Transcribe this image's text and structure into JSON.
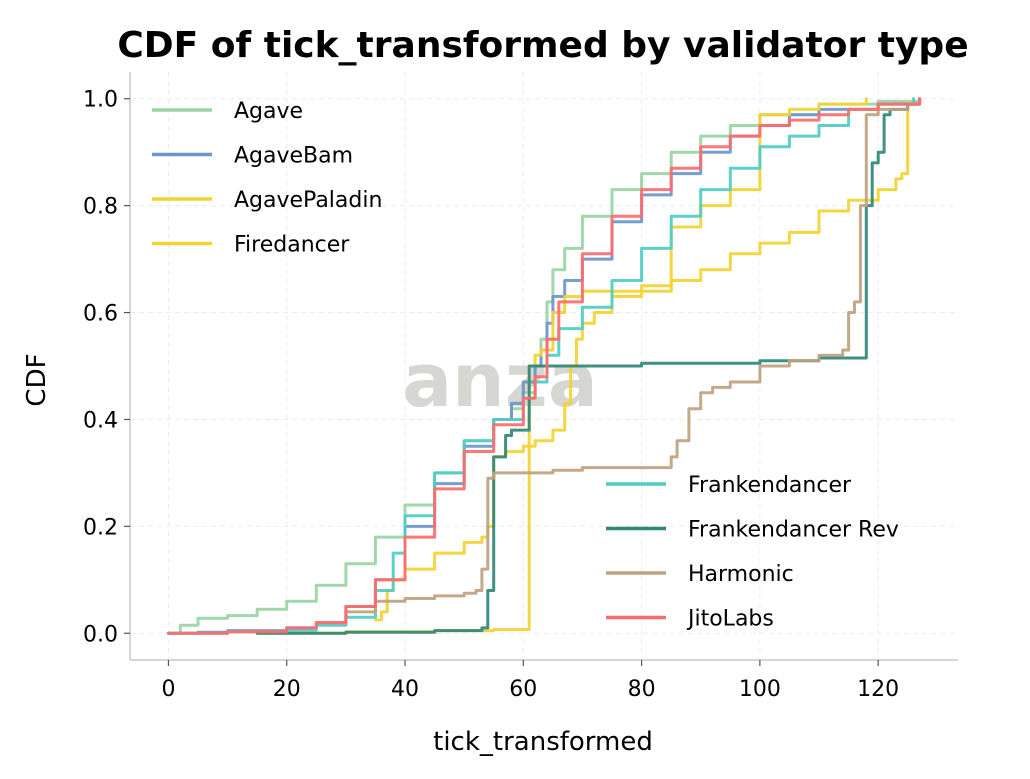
{
  "watermark": "anza",
  "chart_data": {
    "type": "line",
    "title": "CDF of tick_transformed by validator type",
    "xlabel": "tick_transformed",
    "ylabel": "CDF",
    "xlim": [
      -6.5,
      133.5
    ],
    "ylim": [
      -0.05,
      1.05
    ],
    "x_ticks": [
      0,
      20,
      40,
      60,
      80,
      100,
      120
    ],
    "y_ticks": [
      0.0,
      0.2,
      0.4,
      0.6,
      0.8,
      1.0
    ],
    "x_tick_labels": [
      "0",
      "20",
      "40",
      "60",
      "80",
      "100",
      "120"
    ],
    "y_tick_labels": [
      "0.0",
      "0.2",
      "0.4",
      "0.6",
      "0.8",
      "1.0"
    ],
    "grid": true,
    "legend_groups": [
      {
        "placement": "top-left",
        "entries": [
          "Agave",
          "AgaveBam",
          "AgavePaladin",
          "Firedancer"
        ]
      },
      {
        "placement": "bottom-right",
        "entries": [
          "Frankendancer",
          "Frankendancer Rev",
          "Harmonic",
          "JitoLabs"
        ]
      }
    ],
    "series": [
      {
        "name": "Agave",
        "color": "#98d4a4",
        "points": [
          [
            0,
            0
          ],
          [
            2,
            0.015
          ],
          [
            5,
            0.028
          ],
          [
            10,
            0.033
          ],
          [
            15,
            0.045
          ],
          [
            20,
            0.06
          ],
          [
            25,
            0.09
          ],
          [
            30,
            0.13
          ],
          [
            35,
            0.18
          ],
          [
            40,
            0.24
          ],
          [
            45,
            0.3
          ],
          [
            50,
            0.36
          ],
          [
            55,
            0.4
          ],
          [
            58,
            0.42
          ],
          [
            60,
            0.45
          ],
          [
            62,
            0.5
          ],
          [
            63,
            0.55
          ],
          [
            64,
            0.62
          ],
          [
            65,
            0.68
          ],
          [
            67,
            0.72
          ],
          [
            70,
            0.78
          ],
          [
            75,
            0.83
          ],
          [
            80,
            0.86
          ],
          [
            85,
            0.9
          ],
          [
            90,
            0.93
          ],
          [
            95,
            0.95
          ],
          [
            100,
            0.97
          ],
          [
            110,
            0.99
          ],
          [
            120,
            0.995
          ],
          [
            127,
            1.0
          ]
        ]
      },
      {
        "name": "AgaveBam",
        "color": "#6b96cc",
        "points": [
          [
            0,
            0
          ],
          [
            5,
            0.002
          ],
          [
            10,
            0.005
          ],
          [
            20,
            0.01
          ],
          [
            25,
            0.02
          ],
          [
            30,
            0.05
          ],
          [
            35,
            0.1
          ],
          [
            40,
            0.2
          ],
          [
            45,
            0.28
          ],
          [
            50,
            0.35
          ],
          [
            55,
            0.4
          ],
          [
            58,
            0.43
          ],
          [
            60,
            0.47
          ],
          [
            62,
            0.5
          ],
          [
            63,
            0.53
          ],
          [
            64,
            0.58
          ],
          [
            65,
            0.63
          ],
          [
            67,
            0.66
          ],
          [
            70,
            0.7
          ],
          [
            75,
            0.77
          ],
          [
            80,
            0.82
          ],
          [
            85,
            0.86
          ],
          [
            90,
            0.9
          ],
          [
            95,
            0.93
          ],
          [
            100,
            0.95
          ],
          [
            105,
            0.97
          ],
          [
            110,
            0.98
          ],
          [
            120,
            0.99
          ],
          [
            127,
            1.0
          ]
        ]
      },
      {
        "name": "AgavePaladin",
        "color": "#f3d232",
        "points": [
          [
            35,
            0.025
          ],
          [
            36,
            0.04
          ],
          [
            37,
            0.08
          ],
          [
            38,
            0.1
          ],
          [
            40,
            0.12
          ],
          [
            45,
            0.15
          ],
          [
            50,
            0.17
          ],
          [
            53,
            0.18
          ],
          [
            54,
            0.2
          ],
          [
            55,
            0.33
          ],
          [
            57,
            0.34
          ],
          [
            60,
            0.35
          ],
          [
            62,
            0.36
          ],
          [
            65,
            0.38
          ],
          [
            67,
            0.43
          ],
          [
            68,
            0.5
          ],
          [
            69,
            0.55
          ],
          [
            70,
            0.58
          ],
          [
            72,
            0.6
          ],
          [
            75,
            0.63
          ],
          [
            80,
            0.65
          ],
          [
            85,
            0.66
          ],
          [
            90,
            0.68
          ],
          [
            95,
            0.71
          ],
          [
            100,
            0.73
          ],
          [
            105,
            0.75
          ],
          [
            110,
            0.79
          ],
          [
            115,
            0.81
          ],
          [
            120,
            0.83
          ],
          [
            123,
            0.85
          ],
          [
            124,
            0.86
          ],
          [
            125,
            0.98
          ]
        ]
      },
      {
        "name": "Firedancer",
        "color": "#f3d232",
        "points": [
          [
            15,
            0
          ],
          [
            30,
            0.003
          ],
          [
            45,
            0.005
          ],
          [
            55,
            0.007
          ],
          [
            61,
            0.008
          ],
          [
            61,
            0.5
          ],
          [
            62,
            0.52
          ],
          [
            63,
            0.53
          ],
          [
            65,
            0.6
          ],
          [
            67,
            0.63
          ],
          [
            70,
            0.64
          ],
          [
            75,
            0.64
          ],
          [
            80,
            0.64
          ],
          [
            85,
            0.64
          ],
          [
            85,
            0.76
          ],
          [
            90,
            0.8
          ],
          [
            95,
            0.83
          ],
          [
            100,
            0.86
          ],
          [
            100,
            0.97
          ],
          [
            105,
            0.98
          ],
          [
            110,
            0.99
          ],
          [
            118,
            1.0
          ]
        ]
      },
      {
        "name": "Frankendancer",
        "color": "#4ecdc4",
        "points": [
          [
            0,
            0
          ],
          [
            10,
            0.003
          ],
          [
            20,
            0.006
          ],
          [
            25,
            0.015
          ],
          [
            30,
            0.03
          ],
          [
            35,
            0.08
          ],
          [
            38,
            0.15
          ],
          [
            40,
            0.22
          ],
          [
            45,
            0.3
          ],
          [
            50,
            0.36
          ],
          [
            55,
            0.4
          ],
          [
            60,
            0.44
          ],
          [
            62,
            0.47
          ],
          [
            64,
            0.52
          ],
          [
            66,
            0.57
          ],
          [
            70,
            0.61
          ],
          [
            75,
            0.66
          ],
          [
            80,
            0.72
          ],
          [
            85,
            0.78
          ],
          [
            90,
            0.83
          ],
          [
            95,
            0.87
          ],
          [
            100,
            0.91
          ],
          [
            105,
            0.93
          ],
          [
            110,
            0.95
          ],
          [
            115,
            0.98
          ],
          [
            120,
            0.99
          ],
          [
            126,
            1.0
          ]
        ]
      },
      {
        "name": "Frankendancer Rev",
        "color": "#2f8878",
        "points": [
          [
            15,
            0
          ],
          [
            30,
            0.002
          ],
          [
            45,
            0.005
          ],
          [
            53,
            0.01
          ],
          [
            54,
            0.08
          ],
          [
            55,
            0.33
          ],
          [
            57,
            0.37
          ],
          [
            58,
            0.38
          ],
          [
            61,
            0.5
          ],
          [
            63,
            0.5
          ],
          [
            80,
            0.505
          ],
          [
            100,
            0.51
          ],
          [
            110,
            0.515
          ],
          [
            118,
            0.52
          ],
          [
            118,
            0.8
          ],
          [
            119,
            0.88
          ],
          [
            120,
            0.9
          ],
          [
            121,
            0.97
          ],
          [
            122,
            0.98
          ],
          [
            125,
            0.99
          ],
          [
            127,
            1.0
          ]
        ]
      },
      {
        "name": "Harmonic",
        "color": "#bea27f",
        "points": [
          [
            25,
            0.02
          ],
          [
            30,
            0.04
          ],
          [
            35,
            0.06
          ],
          [
            40,
            0.065
          ],
          [
            45,
            0.07
          ],
          [
            50,
            0.075
          ],
          [
            52,
            0.08
          ],
          [
            53,
            0.12
          ],
          [
            54,
            0.29
          ],
          [
            55,
            0.3
          ],
          [
            60,
            0.3
          ],
          [
            65,
            0.305
          ],
          [
            70,
            0.31
          ],
          [
            80,
            0.31
          ],
          [
            85,
            0.33
          ],
          [
            86,
            0.36
          ],
          [
            88,
            0.42
          ],
          [
            90,
            0.45
          ],
          [
            92,
            0.46
          ],
          [
            95,
            0.47
          ],
          [
            100,
            0.5
          ],
          [
            105,
            0.51
          ],
          [
            110,
            0.52
          ],
          [
            114,
            0.53
          ],
          [
            115,
            0.6
          ],
          [
            116,
            0.62
          ],
          [
            117,
            0.8
          ],
          [
            118,
            0.97
          ],
          [
            120,
            0.98
          ],
          [
            125,
            0.99
          ],
          [
            127,
            1.0
          ]
        ]
      },
      {
        "name": "JitoLabs",
        "color": "#ff6b6b",
        "points": [
          [
            0,
            0
          ],
          [
            10,
            0.003
          ],
          [
            20,
            0.01
          ],
          [
            25,
            0.02
          ],
          [
            30,
            0.05
          ],
          [
            35,
            0.1
          ],
          [
            40,
            0.18
          ],
          [
            45,
            0.27
          ],
          [
            50,
            0.34
          ],
          [
            55,
            0.39
          ],
          [
            60,
            0.44
          ],
          [
            62,
            0.48
          ],
          [
            64,
            0.55
          ],
          [
            66,
            0.62
          ],
          [
            70,
            0.71
          ],
          [
            75,
            0.78
          ],
          [
            80,
            0.83
          ],
          [
            85,
            0.87
          ],
          [
            90,
            0.91
          ],
          [
            95,
            0.93
          ],
          [
            100,
            0.95
          ],
          [
            105,
            0.96
          ],
          [
            110,
            0.97
          ],
          [
            115,
            0.98
          ],
          [
            120,
            0.99
          ],
          [
            127,
            1.0
          ]
        ]
      }
    ]
  }
}
